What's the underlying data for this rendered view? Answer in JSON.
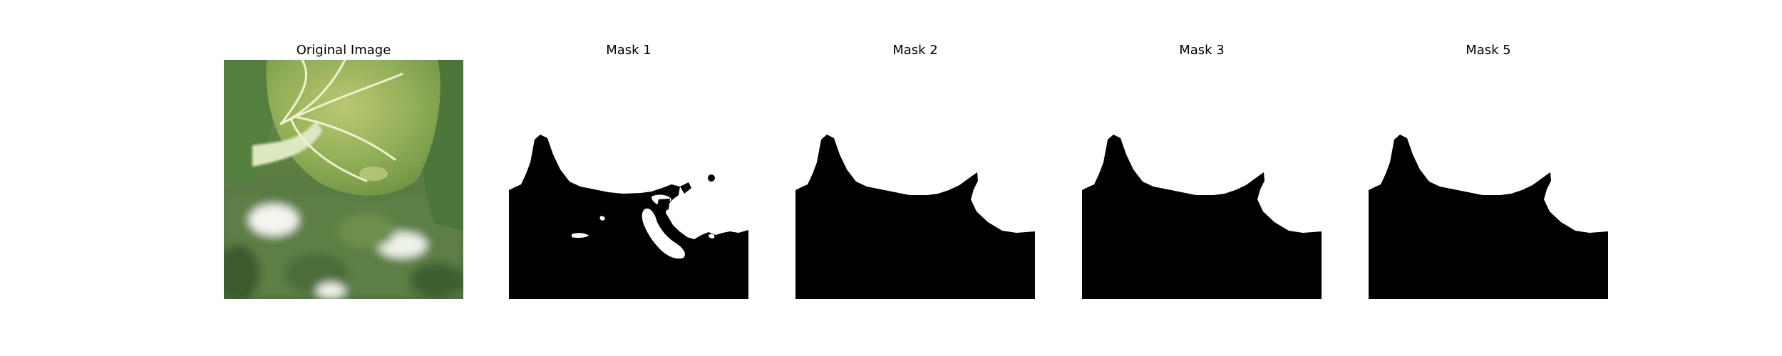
{
  "panels": [
    {
      "title": "Original Image",
      "kind": "photo",
      "subject": "leafy-greens-closeup"
    },
    {
      "title": "Mask 1",
      "kind": "mask"
    },
    {
      "title": "Mask 2",
      "kind": "mask"
    },
    {
      "title": "Mask 3",
      "kind": "mask"
    },
    {
      "title": "Mask 5",
      "kind": "mask"
    }
  ],
  "colors": {
    "background": "#ffffff",
    "mask_foreground": "#000000",
    "mask_background": "#ffffff",
    "leaf_dark": "#4f7a3c",
    "leaf_light": "#a9bd6a",
    "vein": "#e6ecc0"
  }
}
